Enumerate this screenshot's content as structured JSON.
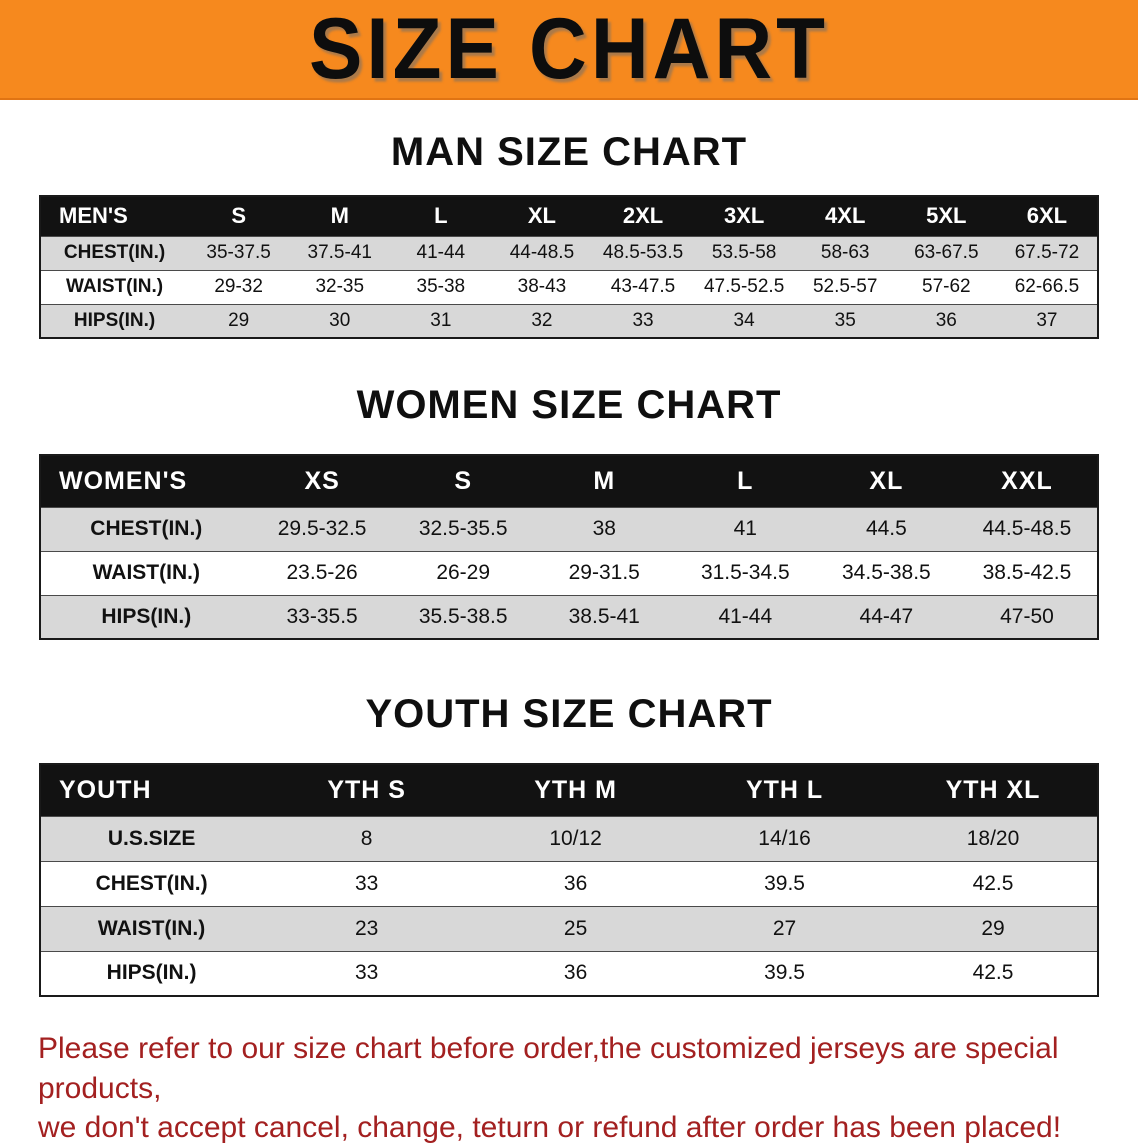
{
  "banner": {
    "title": "SIZE CHART",
    "bg_color": "#f6891e",
    "text_color": "#0d0d0d"
  },
  "colors": {
    "header_bar": "#121212",
    "stripe": "#d8d8d8",
    "footer_text": "#a32020"
  },
  "men": {
    "heading": "MAN SIZE CHART",
    "header": [
      "MEN'S",
      "S",
      "M",
      "L",
      "XL",
      "2XL",
      "3XL",
      "4XL",
      "5XL",
      "6XL"
    ],
    "rows": [
      {
        "label": "CHEST(IN.)",
        "values": [
          "35-37.5",
          "37.5-41",
          "41-44",
          "44-48.5",
          "48.5-53.5",
          "53.5-58",
          "58-63",
          "63-67.5",
          "67.5-72"
        ]
      },
      {
        "label": "WAIST(IN.)",
        "values": [
          "29-32",
          "32-35",
          "35-38",
          "38-43",
          "43-47.5",
          "47.5-52.5",
          "52.5-57",
          "57-62",
          "62-66.5"
        ]
      },
      {
        "label": "HIPS(IN.)",
        "values": [
          "29",
          "30",
          "31",
          "32",
          "33",
          "34",
          "35",
          "36",
          "37"
        ]
      }
    ]
  },
  "women": {
    "heading": "WOMEN SIZE CHART",
    "header": [
      "WOMEN'S",
      "XS",
      "S",
      "M",
      "L",
      "XL",
      "XXL"
    ],
    "rows": [
      {
        "label": "CHEST(IN.)",
        "values": [
          "29.5-32.5",
          "32.5-35.5",
          "38",
          "41",
          "44.5",
          "44.5-48.5"
        ]
      },
      {
        "label": "WAIST(IN.)",
        "values": [
          "23.5-26",
          "26-29",
          "29-31.5",
          "31.5-34.5",
          "34.5-38.5",
          "38.5-42.5"
        ]
      },
      {
        "label": "HIPS(IN.)",
        "values": [
          "33-35.5",
          "35.5-38.5",
          "38.5-41",
          "41-44",
          "44-47",
          "47-50"
        ]
      }
    ]
  },
  "youth": {
    "heading": "YOUTH SIZE CHART",
    "header": [
      "YOUTH",
      "YTH S",
      "YTH M",
      "YTH L",
      "YTH XL"
    ],
    "rows": [
      {
        "label": "U.S.SIZE",
        "values": [
          "8",
          "10/12",
          "14/16",
          "18/20"
        ]
      },
      {
        "label": "CHEST(IN.)",
        "values": [
          "33",
          "36",
          "39.5",
          "42.5"
        ]
      },
      {
        "label": "WAIST(IN.)",
        "values": [
          "23",
          "25",
          "27",
          "29"
        ]
      },
      {
        "label": "HIPS(IN.)",
        "values": [
          "33",
          "36",
          "39.5",
          "42.5"
        ]
      }
    ]
  },
  "footer": {
    "line1": "Please refer to our size chart before order,the customized jerseys are special products,",
    "line2": "we don't accept cancel, change, teturn or refund after order has been placed!"
  }
}
